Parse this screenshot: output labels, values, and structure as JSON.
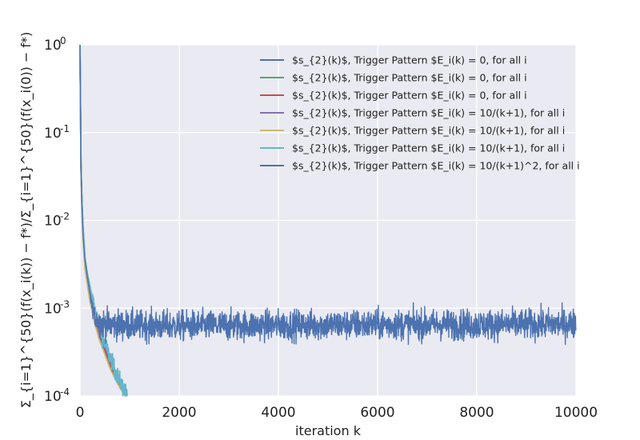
{
  "chart_data": {
    "type": "line",
    "title": "",
    "xlabel": "iteration k",
    "ylabel": "Σ_{i=1}^{50}(f(x_i(k)) − f*)/Σ_{i=1}^{50}(f(x_i(0)) − f*)",
    "xlim": [
      0,
      10000
    ],
    "ylim": [
      0.0001,
      1
    ],
    "yscale": "log",
    "grid": true,
    "legend_position": "top-right",
    "x_ticks": [
      {
        "value": 0,
        "label": "0"
      },
      {
        "value": 2000,
        "label": "2000"
      },
      {
        "value": 4000,
        "label": "4000"
      },
      {
        "value": 6000,
        "label": "6000"
      },
      {
        "value": 8000,
        "label": "8000"
      },
      {
        "value": 10000,
        "label": "10000"
      }
    ],
    "y_ticks": [
      {
        "value": 1,
        "base": "10",
        "exp": "0"
      },
      {
        "value": 0.1,
        "base": "10",
        "exp": "-1"
      },
      {
        "value": 0.01,
        "base": "10",
        "exp": "-2"
      },
      {
        "value": 0.001,
        "base": "10",
        "exp": "-3"
      },
      {
        "value": 0.0001,
        "base": "10",
        "exp": "-4"
      }
    ],
    "series": [
      {
        "name": "$s_{2}(k)$, Trigger Pattern $E_i(k) = 0, for all i",
        "color": "#4c72b0",
        "x": [
          0,
          20,
          40,
          60,
          100,
          150,
          200,
          300,
          400,
          500,
          600,
          700,
          800,
          900,
          950
        ],
        "y": [
          1,
          0.04,
          0.015,
          0.008,
          0.0035,
          0.0022,
          0.0015,
          0.0008,
          0.0005,
          0.00035,
          0.00025,
          0.00018,
          0.00014,
          0.00011,
          0.0001
        ]
      },
      {
        "name": "$s_{2}(k)$, Trigger Pattern $E_i(k) = 0, for all i",
        "color": "#55a868",
        "x": [
          0,
          20,
          40,
          60,
          100,
          150,
          200,
          300,
          400,
          500,
          600,
          700,
          800,
          900,
          940
        ],
        "y": [
          1,
          0.04,
          0.015,
          0.008,
          0.0035,
          0.0022,
          0.0015,
          0.00078,
          0.00048,
          0.00034,
          0.00024,
          0.00017,
          0.000135,
          0.000105,
          0.0001
        ]
      },
      {
        "name": "$s_{2}(k)$, Trigger Pattern $E_i(k) = 0, for all i",
        "color": "#c44e52",
        "x": [
          0,
          20,
          40,
          60,
          100,
          150,
          200,
          300,
          400,
          500,
          600,
          700,
          800,
          900,
          930
        ],
        "y": [
          1,
          0.04,
          0.015,
          0.008,
          0.0035,
          0.0021,
          0.0014,
          0.00075,
          0.00047,
          0.00033,
          0.00023,
          0.00017,
          0.00013,
          0.000104,
          0.0001
        ]
      },
      {
        "name": "$s_{2}(k)$, Trigger Pattern $E_i(k) = 10/(k+1), for all i",
        "color": "#8172b2",
        "x": [
          0,
          20,
          40,
          60,
          100,
          150,
          200,
          300,
          400,
          500,
          600,
          700,
          800,
          900,
          950
        ],
        "y": [
          1,
          0.04,
          0.016,
          0.0085,
          0.0036,
          0.0023,
          0.0016,
          0.00082,
          0.00051,
          0.00036,
          0.00026,
          0.00019,
          0.000145,
          0.000112,
          0.0001
        ]
      },
      {
        "name": "$s_{2}(k)$, Trigger Pattern $E_i(k) = 10/(k+1), for all i",
        "color": "#ccb974",
        "x": [
          0,
          20,
          40,
          60,
          100,
          150,
          200,
          300,
          400,
          500,
          600,
          700,
          800,
          900,
          920
        ],
        "y": [
          1,
          0.035,
          0.012,
          0.006,
          0.0028,
          0.0018,
          0.0012,
          0.00066,
          0.00042,
          0.0003,
          0.00021,
          0.00016,
          0.000125,
          0.000102,
          0.0001
        ]
      },
      {
        "name": "$s_{2}(k)$, Trigger Pattern $E_i(k) = 10/(k+1), for all i",
        "color": "#64b5cd",
        "x": [
          0,
          20,
          40,
          60,
          100,
          150,
          200,
          300,
          400,
          500,
          600,
          700,
          800,
          900,
          950
        ],
        "y": [
          1,
          0.04,
          0.016,
          0.009,
          0.0038,
          0.0025,
          0.0018,
          0.00095,
          0.0006,
          0.0004,
          0.00028,
          0.0002,
          0.00015,
          0.000115,
          0.0001
        ]
      },
      {
        "name": "$s_{2}(k)$, Trigger Pattern $E_i(k) = 10/(k+1)^2, for all i",
        "color": "#4c72b0",
        "noise": true,
        "x": [
          0,
          20,
          40,
          60,
          100,
          150,
          200,
          250,
          300,
          400,
          600,
          1000,
          2000,
          4000,
          6000,
          8000,
          10000
        ],
        "y": [
          1,
          0.04,
          0.014,
          0.007,
          0.0035,
          0.0022,
          0.0014,
          0.001,
          0.0008,
          0.00068,
          0.00065,
          0.00064,
          0.00063,
          0.00064,
          0.00065,
          0.00065,
          0.00066
        ]
      }
    ]
  }
}
